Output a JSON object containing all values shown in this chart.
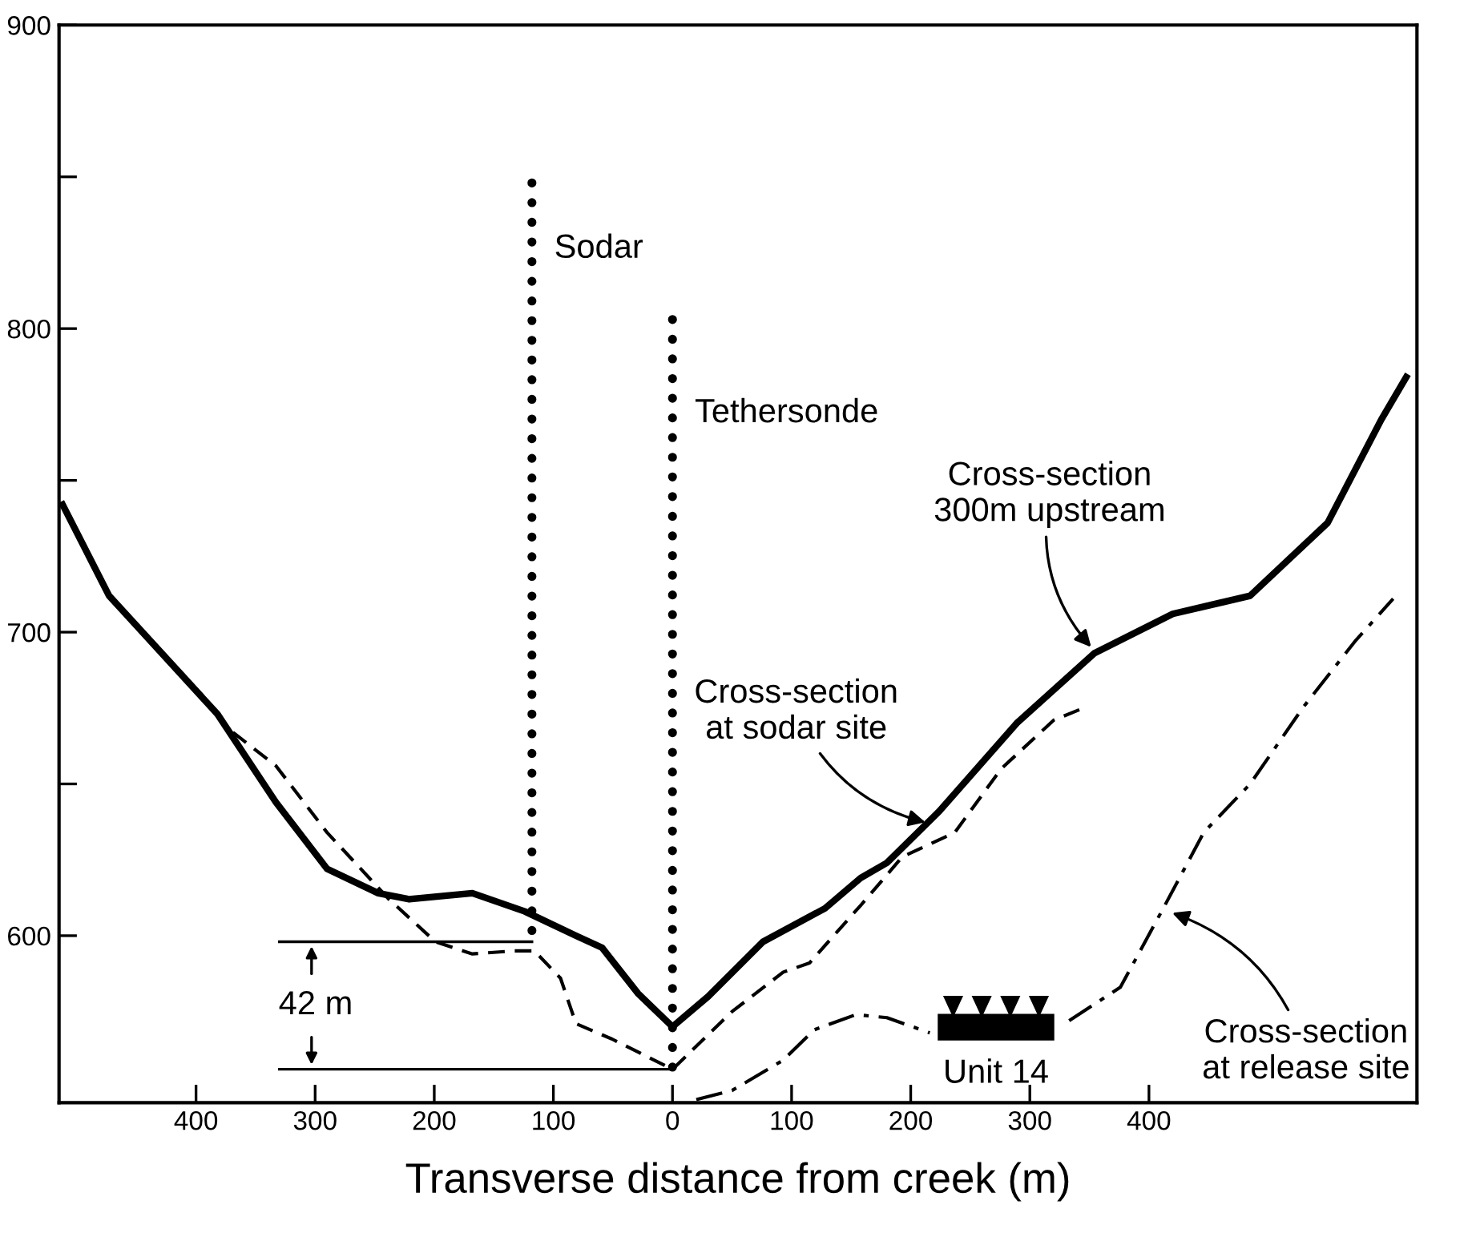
{
  "chart_data": {
    "type": "line",
    "xlabel": "Transverse distance from creek (m)",
    "xlim": [
      -515,
      625
    ],
    "ylim": [
      545,
      900
    ],
    "xticks": [
      {
        "value": -400,
        "label": "400"
      },
      {
        "value": -300,
        "label": "300"
      },
      {
        "value": -200,
        "label": "200"
      },
      {
        "value": -100,
        "label": "100"
      },
      0,
      100,
      200,
      300,
      400
    ],
    "yticks": [
      600,
      {
        "value": 650,
        "label": null
      },
      700,
      {
        "value": 750,
        "label": null
      },
      800,
      {
        "value": 850,
        "label": null
      },
      900
    ],
    "grid": false,
    "tick_labels": "xy",
    "series": [
      {
        "color": "#000000",
        "line_style": "solid",
        "x": [
          -512,
          -473,
          -382,
          -333,
          -290,
          -247,
          -221,
          -168,
          -124,
          -81,
          -59,
          -29,
          0,
          30,
          76,
          128,
          158,
          180,
          224,
          289,
          354,
          420,
          485,
          550,
          595,
          616
        ],
        "values": [
          742,
          712,
          673,
          644,
          622,
          614,
          612,
          614,
          608,
          600,
          596,
          581,
          570,
          580,
          598,
          609,
          619,
          624,
          641,
          670,
          693,
          706,
          712,
          736,
          770,
          784
        ]
      },
      {
        "color": "#000000",
        "line_style": "dashed",
        "x": [
          -369,
          -333,
          -290,
          -238,
          -199,
          -168,
          -133,
          -116,
          -94,
          -81,
          -51,
          0,
          50,
          93,
          115,
          158,
          193,
          237,
          276,
          320,
          345
        ],
        "values": [
          667,
          656,
          634,
          612,
          598,
          594,
          595,
          595,
          586,
          571,
          566,
          556,
          575,
          588,
          591,
          610,
          626,
          634,
          655,
          671,
          675
        ]
      },
      {
        "color": "#000000",
        "line_style": "dashdot",
        "x": [
          20,
          50,
          93,
          119,
          154,
          180,
          216,
          224,
          322,
          333,
          376,
          412,
          446,
          485,
          529,
          573,
          605
        ],
        "values": [
          546,
          549,
          559,
          569,
          574,
          573,
          568,
          null,
          null,
          572,
          583,
          609,
          634,
          650,
          675,
          697,
          711
        ]
      },
      {
        "color": "#000000",
        "line_style": "dotted",
        "x": [
          -118,
          -118
        ],
        "values": [
          848,
          598
        ]
      },
      {
        "color": "#000000",
        "line_style": "dotted",
        "x": [
          0,
          0
        ],
        "values": [
          803,
          556
        ]
      },
      {
        "color": "#000000",
        "line_style": "solid",
        "x": [
          -330,
          -118
        ],
        "values": [
          598,
          598
        ]
      },
      {
        "color": "#000000",
        "line_style": "solid",
        "x": [
          -330,
          0
        ],
        "values": [
          556,
          556
        ]
      }
    ],
    "annotations": [
      {
        "text": "Sodar",
        "x": -118,
        "y": 835
      },
      {
        "text": "Tethersonde",
        "x": 0,
        "y": 783
      },
      {
        "text": "Cross-section\n300m upstream",
        "x": 354,
        "y": 694
      },
      {
        "text": "Cross-section\nat sodar site",
        "x": 216,
        "y": 637
      },
      {
        "text": "Cross-section\nat release site",
        "x": 416,
        "y": 608
      },
      "42 m",
      "Unit 14"
    ]
  }
}
